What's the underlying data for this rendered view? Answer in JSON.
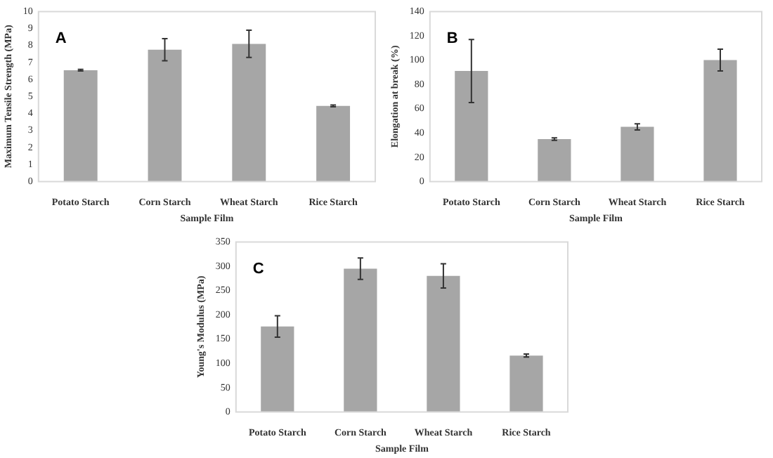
{
  "chart_data": [
    {
      "type": "bar",
      "title": "A",
      "xlabel": "Sample Film",
      "ylabel": "Maximum Tensile Strength (MPa)",
      "categories": [
        "Potato Starch",
        "Corn Starch",
        "Wheat Starch",
        "Rice Starch"
      ],
      "color": "#a6a6a6",
      "values": [
        6.55,
        7.75,
        8.1,
        4.45
      ],
      "errors": [
        0.05,
        0.65,
        0.8,
        0.05
      ],
      "ylim": [
        0,
        10
      ],
      "yticks": [
        0,
        1,
        2,
        3,
        4,
        5,
        6,
        7,
        8,
        9,
        10
      ]
    },
    {
      "type": "bar",
      "title": "B",
      "xlabel": "Sample Film",
      "ylabel": "Elongation at break (%)",
      "categories": [
        "Potato Starch",
        "Corn Starch",
        "Wheat Starch",
        "Rice Starch"
      ],
      "color": "#a6a6a6",
      "values": [
        91,
        35,
        45,
        100
      ],
      "errors": [
        26,
        1,
        2.5,
        9
      ],
      "ylim": [
        0,
        140
      ],
      "yticks": [
        0,
        20,
        40,
        60,
        80,
        100,
        120,
        140
      ]
    },
    {
      "type": "bar",
      "title": "C",
      "xlabel": "Sample Film",
      "ylabel": "Young's Modulus (MPa)",
      "categories": [
        "Potato Starch",
        "Corn Starch",
        "Wheat Starch",
        "Rice Starch"
      ],
      "color": "#a6a6a6",
      "values": [
        176,
        295,
        280,
        116
      ],
      "errors": [
        22,
        22,
        25,
        3
      ],
      "ylim": [
        0,
        350
      ],
      "yticks": [
        0,
        50,
        100,
        150,
        200,
        250,
        300,
        350
      ]
    }
  ]
}
